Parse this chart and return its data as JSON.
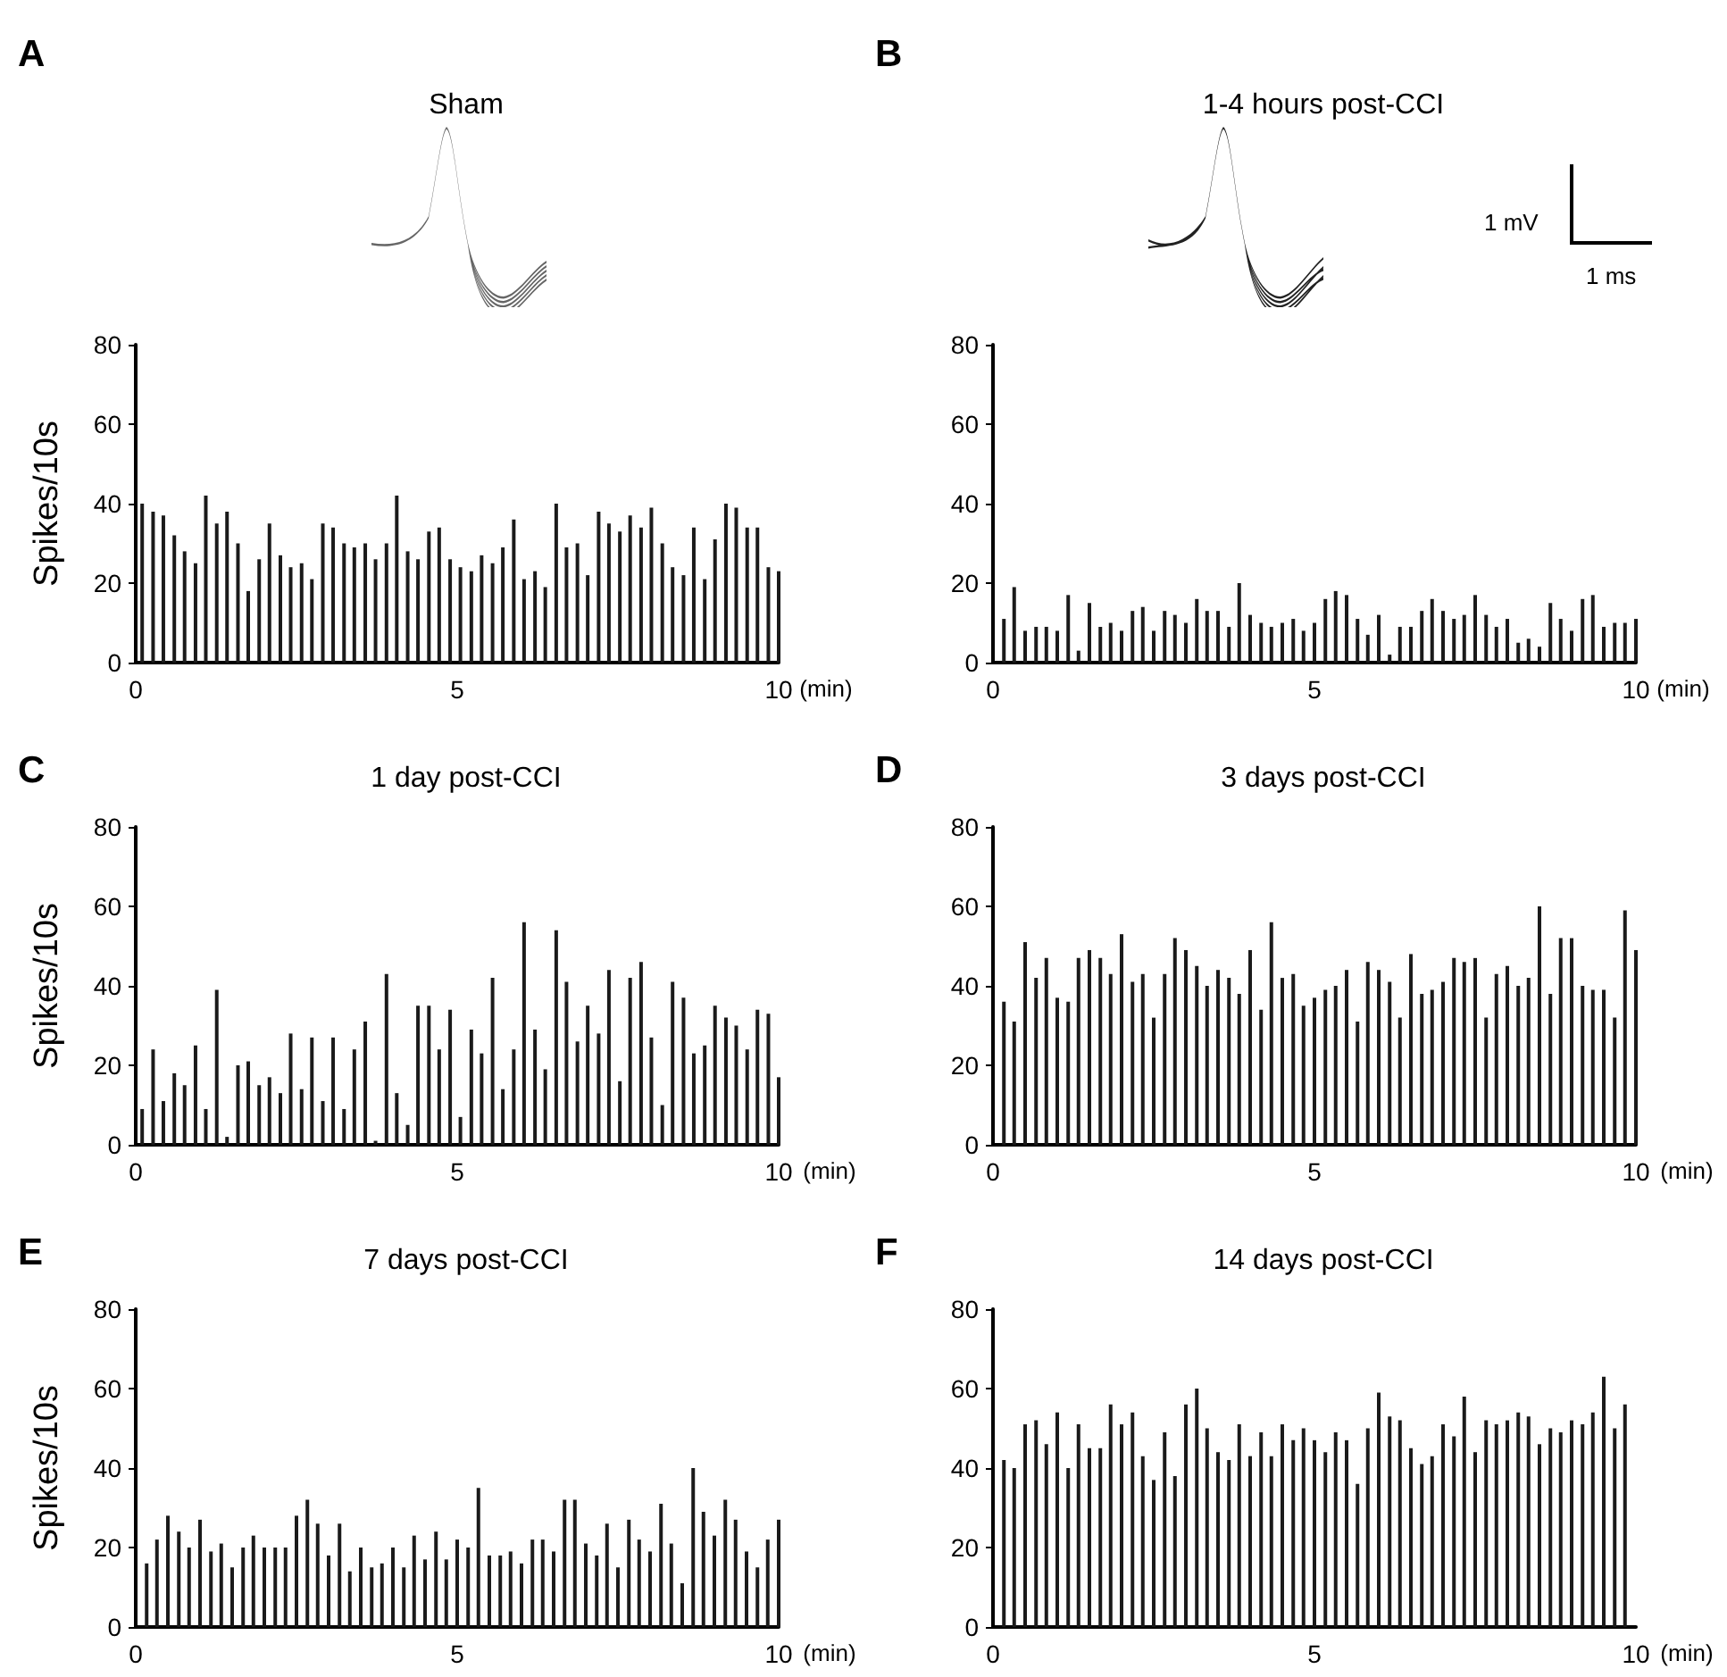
{
  "chart_data": [
    {
      "type": "bar",
      "title": "Sham",
      "ylabel": "Spikes/10s",
      "xlabel": "(min)",
      "color": "#1a1a1a",
      "xlim": [
        0,
        10
      ],
      "xticks": [
        0,
        5,
        10
      ],
      "ylim": [
        0,
        80
      ],
      "yticks": [
        0,
        20,
        40,
        60,
        80
      ],
      "annotations": [
        "A"
      ],
      "x": [
        0.1,
        0.27,
        0.43,
        0.6,
        0.76,
        0.93,
        1.09,
        1.26,
        1.42,
        1.59,
        1.75,
        1.92,
        2.08,
        2.25,
        2.41,
        2.58,
        2.74,
        2.91,
        3.07,
        3.24,
        3.4,
        3.57,
        3.73,
        3.9,
        4.06,
        4.23,
        4.39,
        4.56,
        4.72,
        4.89,
        5.05,
        5.22,
        5.38,
        5.55,
        5.71,
        5.88,
        6.04,
        6.21,
        6.37,
        6.54,
        6.7,
        6.87,
        7.03,
        7.2,
        7.36,
        7.53,
        7.69,
        7.86,
        8.02,
        8.19,
        8.35,
        8.52,
        8.68,
        8.85,
        9.01,
        9.18,
        9.34,
        9.51,
        9.67,
        9.84,
        10
      ],
      "values": [
        40,
        38,
        37,
        32,
        28,
        25,
        42,
        35,
        38,
        30,
        18,
        26,
        35,
        27,
        24,
        25,
        21,
        35,
        34,
        30,
        29,
        30,
        26,
        30,
        42,
        28,
        26,
        33,
        34,
        26,
        24,
        23,
        27,
        25,
        29,
        36,
        21,
        23,
        19,
        40,
        29,
        30,
        22,
        38,
        35,
        33,
        37,
        34,
        39,
        30,
        24,
        22,
        34,
        21,
        31,
        40,
        39,
        34,
        34,
        24,
        23
      ]
    },
    {
      "type": "bar",
      "title": "1-4 hours post-CCI",
      "xlabel": "(min)",
      "color": "#1a1a1a",
      "xlim": [
        0,
        10
      ],
      "xticks": [
        0,
        5,
        10
      ],
      "ylim": [
        0,
        80
      ],
      "yticks": [
        0,
        20,
        40,
        60,
        80
      ],
      "annotations": [
        "B",
        "1 mV",
        "1 ms"
      ],
      "x": [
        0.17,
        0.33,
        0.5,
        0.67,
        0.83,
        1,
        1.17,
        1.33,
        1.5,
        1.67,
        1.83,
        2,
        2.17,
        2.33,
        2.5,
        2.67,
        2.83,
        3,
        3.17,
        3.33,
        3.5,
        3.67,
        3.83,
        4,
        4.17,
        4.33,
        4.5,
        4.67,
        4.83,
        5,
        5.17,
        5.33,
        5.5,
        5.67,
        5.83,
        6,
        6.17,
        6.33,
        6.5,
        6.67,
        6.83,
        7,
        7.17,
        7.33,
        7.5,
        7.67,
        7.83,
        8,
        8.17,
        8.33,
        8.5,
        8.67,
        8.83,
        9,
        9.17,
        9.33,
        9.5,
        9.67,
        9.83,
        10
      ],
      "values": [
        11,
        19,
        8,
        9,
        9,
        8,
        17,
        3,
        15,
        9,
        10,
        8,
        13,
        14,
        8,
        13,
        12,
        10,
        16,
        13,
        13,
        9,
        20,
        12,
        10,
        9,
        10,
        11,
        8,
        10,
        16,
        18,
        17,
        11,
        7,
        12,
        2,
        9,
        9,
        13,
        16,
        13,
        11,
        12,
        17,
        12,
        9,
        11,
        5,
        6,
        4,
        15,
        11,
        8,
        16,
        17,
        9,
        10,
        10,
        11
      ]
    },
    {
      "type": "bar",
      "title": "1 day post-CCI",
      "ylabel": "Spikes/10s",
      "xlabel": "(min)",
      "color": "#1a1a1a",
      "xlim": [
        0,
        10
      ],
      "xticks": [
        0,
        5,
        10
      ],
      "ylim": [
        0,
        80
      ],
      "yticks": [
        0,
        20,
        40,
        60,
        80
      ],
      "annotations": [
        "C"
      ],
      "x": [
        0.1,
        0.27,
        0.43,
        0.6,
        0.76,
        0.93,
        1.09,
        1.26,
        1.42,
        1.59,
        1.75,
        1.92,
        2.08,
        2.25,
        2.41,
        2.58,
        2.74,
        2.91,
        3.07,
        3.24,
        3.4,
        3.57,
        3.73,
        3.9,
        4.06,
        4.23,
        4.39,
        4.56,
        4.72,
        4.89,
        5.05,
        5.22,
        5.38,
        5.55,
        5.71,
        5.88,
        6.04,
        6.21,
        6.37,
        6.54,
        6.7,
        6.87,
        7.03,
        7.2,
        7.36,
        7.53,
        7.69,
        7.86,
        8.02,
        8.19,
        8.35,
        8.52,
        8.68,
        8.85,
        9.01,
        9.18,
        9.34,
        9.51,
        9.67,
        9.84,
        10
      ],
      "values": [
        9,
        24,
        11,
        18,
        15,
        25,
        9,
        39,
        2,
        20,
        21,
        15,
        17,
        13,
        28,
        14,
        27,
        11,
        27,
        9,
        24,
        31,
        1,
        43,
        13,
        5,
        35,
        35,
        24,
        34,
        7,
        29,
        23,
        42,
        14,
        24,
        56,
        29,
        19,
        54,
        41,
        26,
        35,
        28,
        44,
        16,
        42,
        46,
        27,
        10,
        41,
        37,
        23,
        25,
        35,
        32,
        30,
        24,
        34,
        33,
        17
      ]
    },
    {
      "type": "bar",
      "title": "3 days post-CCI",
      "xlabel": "(min)",
      "color": "#1a1a1a",
      "xlim": [
        0,
        10
      ],
      "xticks": [
        0,
        5,
        10
      ],
      "ylim": [
        0,
        80
      ],
      "yticks": [
        0,
        20,
        40,
        60,
        80
      ],
      "annotations": [
        "D"
      ],
      "x": [
        0.17,
        0.33,
        0.5,
        0.67,
        0.83,
        1,
        1.17,
        1.33,
        1.5,
        1.67,
        1.83,
        2,
        2.17,
        2.33,
        2.5,
        2.67,
        2.83,
        3,
        3.17,
        3.33,
        3.5,
        3.67,
        3.83,
        4,
        4.17,
        4.33,
        4.5,
        4.67,
        4.83,
        5,
        5.17,
        5.33,
        5.5,
        5.67,
        5.83,
        6,
        6.17,
        6.33,
        6.5,
        6.67,
        6.83,
        7,
        7.17,
        7.33,
        7.5,
        7.67,
        7.83,
        8,
        8.17,
        8.33,
        8.5,
        8.67,
        8.83,
        9,
        9.17,
        9.33,
        9.5,
        9.67,
        9.83,
        10
      ],
      "values": [
        36,
        31,
        51,
        42,
        47,
        37,
        36,
        47,
        49,
        47,
        43,
        53,
        41,
        43,
        32,
        43,
        52,
        49,
        45,
        40,
        44,
        42,
        38,
        49,
        34,
        56,
        42,
        43,
        35,
        37,
        39,
        40,
        44,
        31,
        46,
        44,
        41,
        32,
        48,
        38,
        39,
        41,
        47,
        46,
        47,
        32,
        43,
        45,
        40,
        42,
        60,
        38,
        52,
        52,
        40,
        39,
        39,
        32,
        59,
        49
      ]
    },
    {
      "type": "bar",
      "title": "7 days post-CCI",
      "ylabel": "Spikes/10s",
      "xlabel": "(min)",
      "color": "#1a1a1a",
      "xlim": [
        0,
        10
      ],
      "xticks": [
        0,
        5,
        10
      ],
      "ylim": [
        0,
        80
      ],
      "yticks": [
        0,
        20,
        40,
        60,
        80
      ],
      "annotations": [
        "E"
      ],
      "x": [
        0.17,
        0.33,
        0.5,
        0.67,
        0.83,
        1,
        1.17,
        1.33,
        1.5,
        1.67,
        1.83,
        2,
        2.17,
        2.33,
        2.5,
        2.67,
        2.83,
        3,
        3.17,
        3.33,
        3.5,
        3.67,
        3.83,
        4,
        4.17,
        4.33,
        4.5,
        4.67,
        4.83,
        5,
        5.17,
        5.33,
        5.5,
        5.67,
        5.83,
        6,
        6.17,
        6.33,
        6.5,
        6.67,
        6.83,
        7,
        7.17,
        7.33,
        7.5,
        7.67,
        7.83,
        8,
        8.17,
        8.33,
        8.5,
        8.67,
        8.83,
        9,
        9.17,
        9.33,
        9.5,
        9.67,
        9.83,
        10
      ],
      "values": [
        16,
        22,
        28,
        24,
        20,
        27,
        19,
        21,
        15,
        20,
        23,
        20,
        20,
        20,
        28,
        32,
        26,
        18,
        26,
        14,
        20,
        15,
        16,
        20,
        15,
        23,
        17,
        24,
        17,
        22,
        20,
        35,
        18,
        18,
        19,
        16,
        22,
        22,
        19,
        32,
        32,
        21,
        18,
        26,
        15,
        27,
        22,
        19,
        31,
        21,
        11,
        40,
        29,
        23,
        32,
        27,
        19,
        15,
        22,
        27
      ]
    },
    {
      "type": "bar",
      "title": "14 days post-CCI",
      "xlabel": "(min)",
      "color": "#1a1a1a",
      "xlim": [
        0,
        10
      ],
      "xticks": [
        0,
        5,
        10
      ],
      "ylim": [
        0,
        80
      ],
      "yticks": [
        0,
        20,
        40,
        60,
        80
      ],
      "annotations": [
        "F"
      ],
      "x": [
        0.17,
        0.33,
        0.5,
        0.67,
        0.83,
        1,
        1.17,
        1.33,
        1.5,
        1.67,
        1.83,
        2,
        2.17,
        2.33,
        2.5,
        2.67,
        2.83,
        3,
        3.17,
        3.33,
        3.5,
        3.67,
        3.83,
        4,
        4.17,
        4.33,
        4.5,
        4.67,
        4.83,
        5,
        5.17,
        5.33,
        5.5,
        5.67,
        5.83,
        6,
        6.17,
        6.33,
        6.5,
        6.67,
        6.83,
        7,
        7.17,
        7.33,
        7.5,
        7.67,
        7.83,
        8,
        8.17,
        8.33,
        8.5,
        8.67,
        8.83,
        9,
        9.17,
        9.33,
        9.5,
        9.67,
        9.83
      ],
      "values": [
        42,
        40,
        51,
        52,
        46,
        54,
        40,
        51,
        45,
        45,
        56,
        51,
        54,
        43,
        37,
        49,
        38,
        56,
        60,
        50,
        44,
        42,
        51,
        43,
        49,
        43,
        51,
        47,
        50,
        47,
        44,
        49,
        47,
        36,
        50,
        59,
        53,
        52,
        45,
        41,
        43,
        51,
        48,
        58,
        44,
        52,
        51,
        52,
        54,
        53,
        46,
        50,
        49,
        52,
        51,
        54,
        63,
        50,
        56
      ]
    }
  ]
}
